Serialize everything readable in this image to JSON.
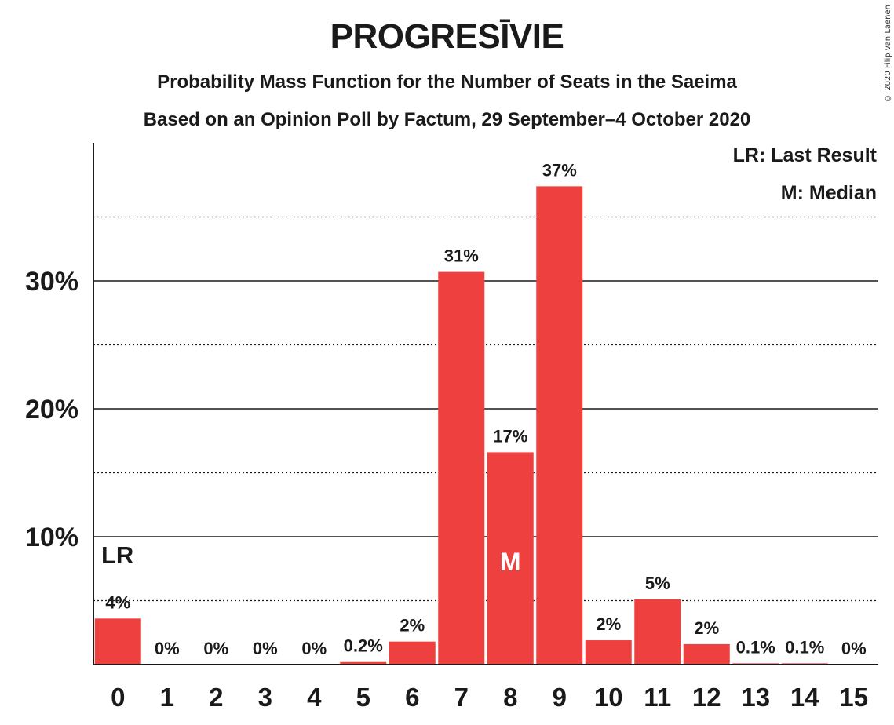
{
  "copyright": "© 2020 Filip van Laenen",
  "chart_data": {
    "type": "bar",
    "title": "PROGRESĪVIE",
    "subtitle_1": "Probability Mass Function for the Number of Seats in the Saeima",
    "subtitle_2": "Based on an Opinion Poll by Factum, 29 September–4 October 2020",
    "xlabel": "",
    "ylabel": "",
    "categories": [
      "0",
      "1",
      "2",
      "3",
      "4",
      "5",
      "6",
      "7",
      "8",
      "9",
      "10",
      "11",
      "12",
      "13",
      "14",
      "15"
    ],
    "values": [
      3.6,
      0,
      0,
      0,
      0,
      0.2,
      1.8,
      30.7,
      16.6,
      37.4,
      1.9,
      5.1,
      1.6,
      0.1,
      0.1,
      0
    ],
    "value_labels": [
      "4%",
      "0%",
      "0%",
      "0%",
      "0%",
      "0.2%",
      "2%",
      "31%",
      "17%",
      "37%",
      "2%",
      "5%",
      "2%",
      "0.1%",
      "0.1%",
      "0%"
    ],
    "ylim": [
      0,
      40
    ],
    "y_ticks": [
      10,
      20,
      30
    ],
    "y_tick_labels": [
      "10%",
      "20%",
      "30%"
    ],
    "minor_gridlines": [
      5,
      15,
      25,
      35
    ],
    "bar_color": "#ef4040",
    "last_result_seat": "0",
    "median_seat": "8",
    "last_result_marker": "LR",
    "median_marker": "M",
    "legend": [
      "LR: Last Result",
      "M: Median"
    ],
    "legend_position": "top-right",
    "grid": true
  }
}
